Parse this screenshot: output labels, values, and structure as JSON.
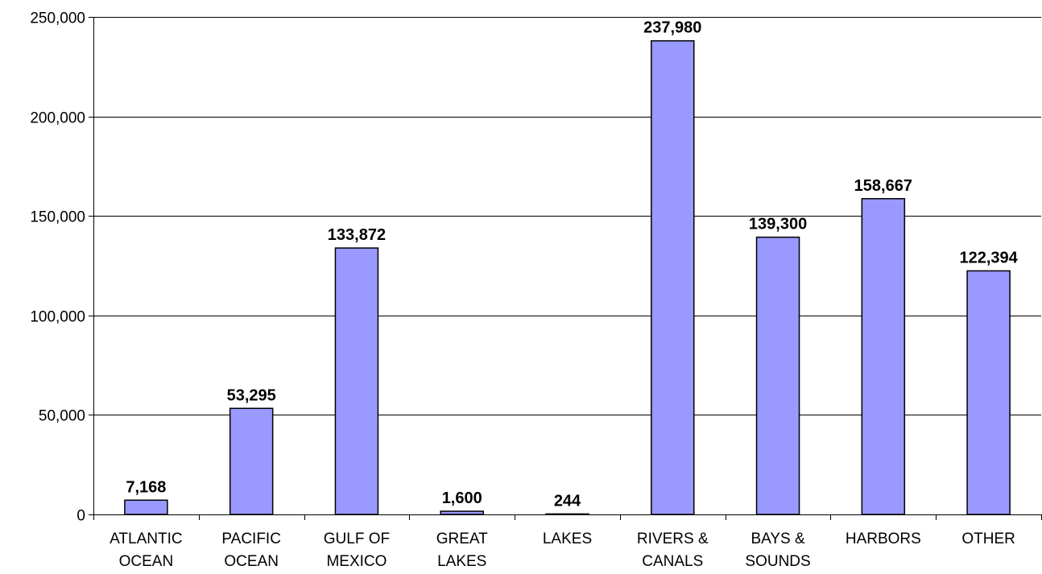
{
  "chart_data": {
    "type": "bar",
    "title": "",
    "xlabel": "",
    "ylabel": "",
    "categories": [
      [
        "ATLANTIC",
        "OCEAN"
      ],
      [
        "PACIFIC",
        "OCEAN"
      ],
      [
        "GULF OF",
        "MEXICO"
      ],
      [
        "GREAT",
        "LAKES"
      ],
      [
        "LAKES"
      ],
      [
        "RIVERS &",
        "CANALS"
      ],
      [
        "BAYS &",
        "SOUNDS"
      ],
      [
        "HARBORS"
      ],
      [
        "OTHER"
      ]
    ],
    "values": [
      7168,
      53295,
      133872,
      1600,
      244,
      237980,
      139300,
      158667,
      122394
    ],
    "data_labels": [
      "7,168",
      "53,295",
      "133,872",
      "1,600",
      "244",
      "237,980",
      "139,300",
      "158,667",
      "122,394"
    ],
    "ylim": [
      0,
      250000
    ],
    "yticks": [
      0,
      50000,
      100000,
      150000,
      200000,
      250000
    ],
    "ytick_labels": [
      "0",
      "50,000",
      "100,000",
      "150,000",
      "200,000",
      "250,000"
    ],
    "grid": true,
    "legend": "none",
    "bar_color": "#9999ff",
    "bar_edge_color": "#000000"
  }
}
